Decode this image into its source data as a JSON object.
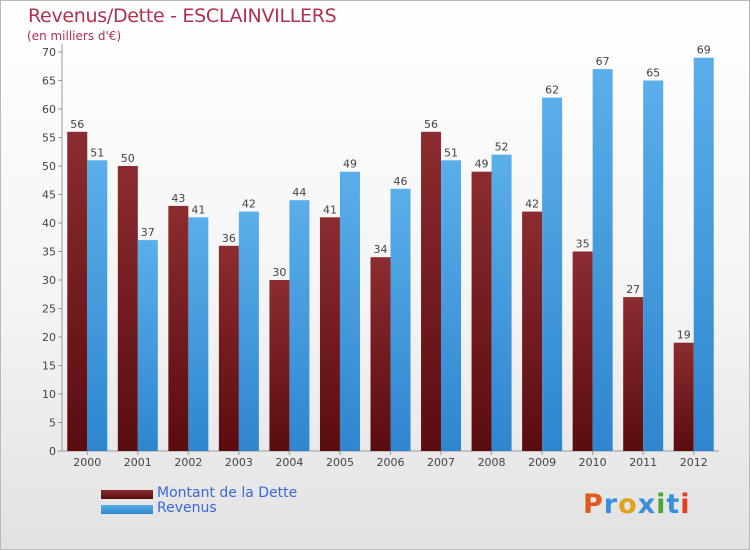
{
  "chart_data": {
    "type": "bar",
    "title": "Revenus/Dette - ESCLAINVILLERS",
    "subtitle": "(en milliers d'€)",
    "categories": [
      "2000",
      "2001",
      "2002",
      "2003",
      "2004",
      "2005",
      "2006",
      "2007",
      "2008",
      "2009",
      "2010",
      "2011",
      "2012"
    ],
    "series": [
      {
        "name": "Montant de la Dette",
        "values": [
          56,
          50,
          43,
          36,
          30,
          41,
          34,
          56,
          49,
          42,
          35,
          27,
          19
        ],
        "color": "#7a1518"
      },
      {
        "name": "Revenus",
        "values": [
          51,
          37,
          41,
          42,
          44,
          49,
          46,
          51,
          52,
          62,
          67,
          65,
          69
        ],
        "color": "#3f9be0"
      }
    ],
    "ylim": [
      0,
      70
    ],
    "yticks": [
      0,
      5,
      10,
      15,
      20,
      25,
      30,
      35,
      40,
      45,
      50,
      55,
      60,
      65,
      70
    ],
    "grid": false,
    "legend_position": "bottom-left"
  },
  "logo": {
    "text": "Proxiti",
    "letter_colors": [
      "#e05a1c",
      "#3a8fd8",
      "#e0a21c",
      "#3a8fd8",
      "#4aa832",
      "#3a8fd8",
      "#e0401c"
    ]
  }
}
